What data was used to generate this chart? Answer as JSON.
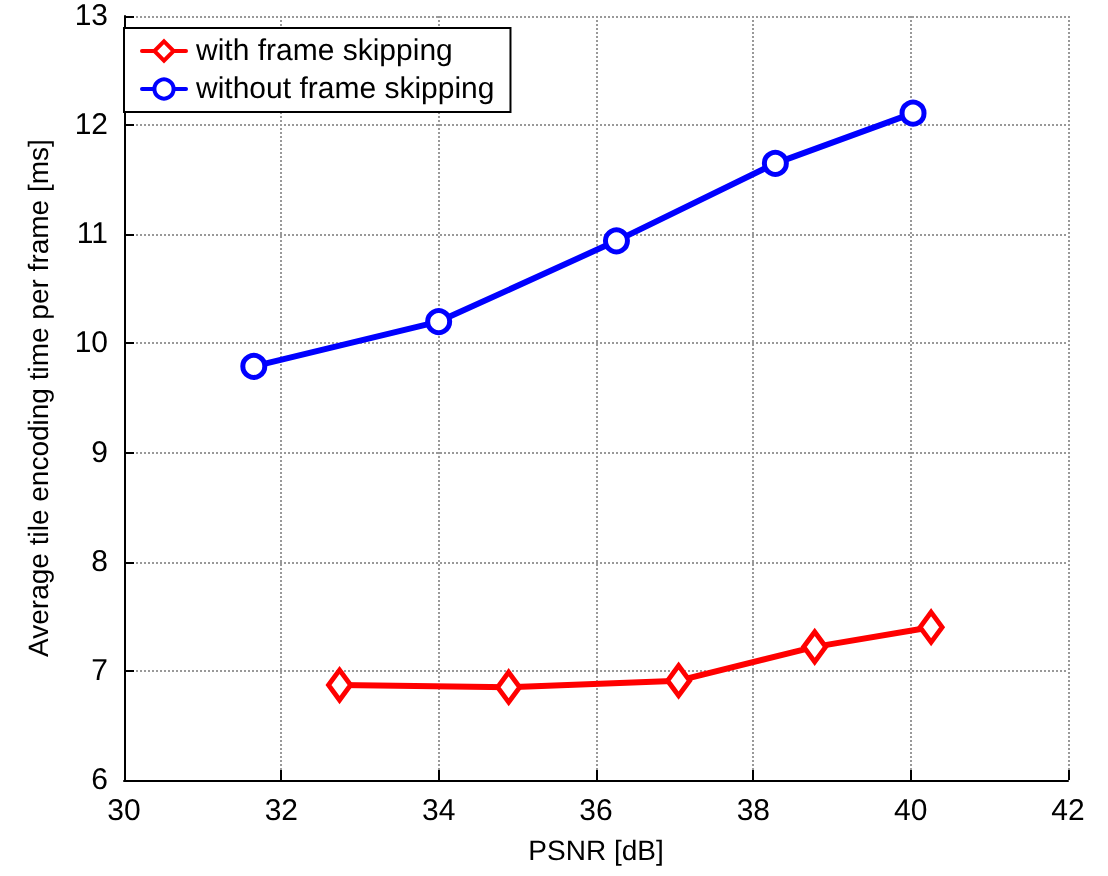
{
  "chart_data": {
    "type": "line",
    "xlabel": "PSNR [dB]",
    "ylabel": "Average tile encoding time per frame [ms]",
    "xlim": [
      30,
      42
    ],
    "xticks": [
      30,
      32,
      34,
      36,
      38,
      40,
      42
    ],
    "ylim": [
      6,
      13
    ],
    "yticks": [
      6,
      7,
      8,
      9,
      10,
      11,
      12,
      13
    ],
    "grid": true,
    "legend": "top left",
    "line_style": "solid",
    "series": [
      {
        "name": "with frame skipping",
        "color": "#ff0000",
        "marker": "diamond",
        "x": [
          32.74,
          34.89,
          37.05,
          38.78,
          40.26
        ],
        "values": [
          6.87,
          6.85,
          6.91,
          7.22,
          7.4
        ]
      },
      {
        "name": "without frame skipping",
        "color": "#0000ff",
        "marker": "circle",
        "x": [
          31.65,
          34.0,
          36.26,
          38.28,
          40.03
        ],
        "values": [
          9.79,
          10.2,
          10.94,
          11.65,
          12.11
        ]
      }
    ]
  }
}
